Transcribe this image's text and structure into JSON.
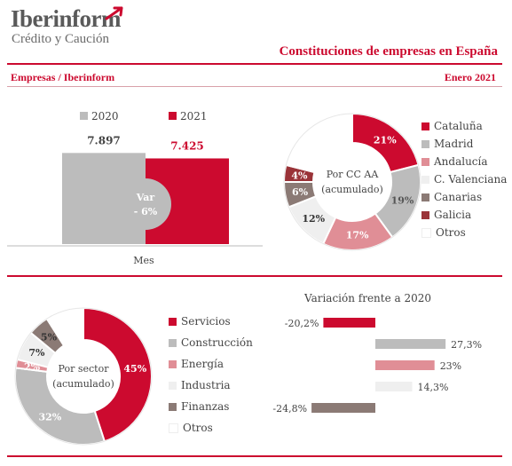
{
  "header": {
    "logo_name": "Iberinform",
    "logo_tagline": "Crédito y Caución",
    "title": "Constituciones de empresas en España",
    "section_label": "Empresas / Iberinform",
    "period": "Enero  2021"
  },
  "colors": {
    "red": "#cc0a2f",
    "grey": "#bcbcbc",
    "pink": "#e08e96",
    "light": "#efefef",
    "taupe": "#8b7a75",
    "darkred": "#9a3338",
    "white": "#ffffff"
  },
  "chart_data": [
    {
      "type": "bar",
      "categories": [
        "Mes"
      ],
      "series": [
        {
          "name": "2020",
          "values": [
            7897
          ],
          "label": "7.897",
          "color": "#bcbcbc"
        },
        {
          "name": "2021",
          "values": [
            7425
          ],
          "label": "7.425",
          "color": "#cc0a2f"
        }
      ],
      "xlabel": "Mes",
      "annotation": {
        "title": "Var",
        "value": "- 6%"
      },
      "legend": "top"
    },
    {
      "type": "pie",
      "center_label": [
        "Por CC AA",
        "(acumulado)"
      ],
      "slices": [
        {
          "label": "Cataluña",
          "value": 21,
          "text": "21%",
          "color": "#cc0a2f"
        },
        {
          "label": "Madrid",
          "value": 19,
          "text": "19%",
          "color": "#bcbcbc"
        },
        {
          "label": "Andalucía",
          "value": 17,
          "text": "17%",
          "color": "#e08e96"
        },
        {
          "label": "C. Valenciana",
          "value": 12,
          "text": "12%",
          "color": "#efefef"
        },
        {
          "label": "Canarias",
          "value": 6,
          "text": "6%",
          "color": "#8b7a75"
        },
        {
          "label": "Galicia",
          "value": 4,
          "text": "4%",
          "color": "#9a3338"
        },
        {
          "label": "Otros",
          "value": 21,
          "text": "",
          "color": "#ffffff"
        }
      ],
      "legend": "right"
    },
    {
      "type": "pie",
      "center_label": [
        "Por sector",
        "(acumulado)"
      ],
      "slices": [
        {
          "label": "Servicios",
          "value": 45,
          "text": "45%",
          "color": "#cc0a2f"
        },
        {
          "label": "Construcción",
          "value": 32,
          "text": "32%",
          "color": "#bcbcbc"
        },
        {
          "label": "Energía",
          "value": 2,
          "text": "2%",
          "color": "#e08e96"
        },
        {
          "label": "Industria",
          "value": 7,
          "text": "7%",
          "color": "#efefef"
        },
        {
          "label": "Finanzas",
          "value": 5,
          "text": "5%",
          "color": "#8b7a75"
        },
        {
          "label": "Otros",
          "value": 9,
          "text": "",
          "color": "#ffffff"
        }
      ],
      "legend": "right"
    },
    {
      "type": "bar",
      "orientation": "horizontal",
      "title": "Variación frente a 2020",
      "categories": [
        "Servicios",
        "Construcción",
        "Energía",
        "Industria",
        "Finanzas"
      ],
      "values": [
        -20.2,
        27.3,
        23,
        14.3,
        -24.8
      ],
      "labels": [
        "-20,2%",
        "27,3%",
        "23%",
        "14,3%",
        "-24,8%"
      ],
      "colors": [
        "#cc0a2f",
        "#bcbcbc",
        "#e08e96",
        "#efefef",
        "#8b7a75"
      ]
    }
  ]
}
